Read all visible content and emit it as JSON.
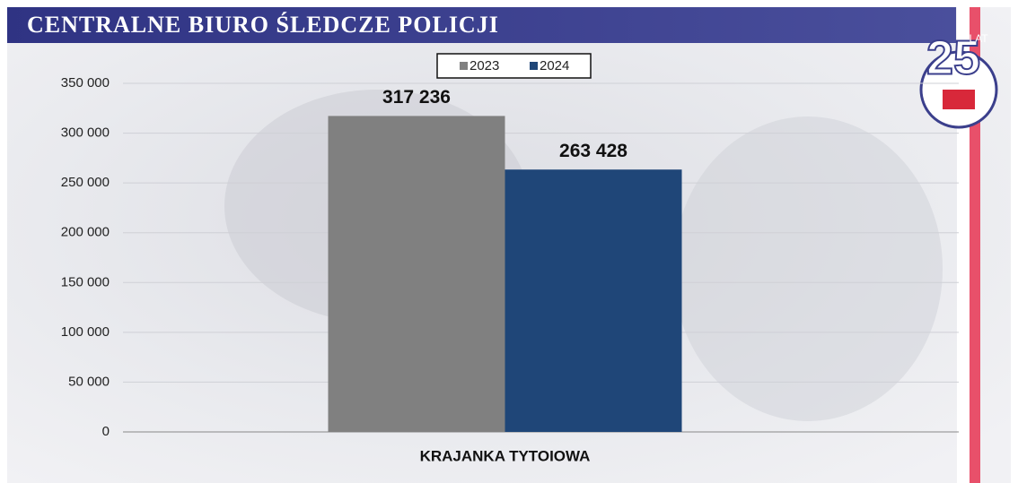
{
  "header": {
    "title": "CENTRALNE BIURO ŚLEDCZE POLICJI"
  },
  "logo": {
    "number": "25",
    "text": "LAT"
  },
  "chart_data": {
    "type": "bar",
    "categories": [
      "KRAJANKA TYTOIOWA"
    ],
    "series": [
      {
        "name": "2023",
        "color": "#808080",
        "values": [
          317236
        ],
        "value_labels": [
          "317 236"
        ]
      },
      {
        "name": "2024",
        "color": "#1f4678",
        "values": [
          263428
        ],
        "value_labels": [
          "263 428"
        ]
      }
    ],
    "ylim": [
      0,
      350000
    ],
    "yticks": [
      0,
      {
        "value": 50000,
        "label": "50 000"
      },
      {
        "value": 100000,
        "label": "100 000"
      },
      {
        "value": 150000,
        "label": "150 000"
      },
      {
        "value": 200000,
        "label": "200 000"
      },
      {
        "value": 250000,
        "label": "250 000"
      },
      {
        "value": 300000,
        "label": "300 000"
      },
      {
        "value": 350000,
        "label": "350 000"
      }
    ],
    "grid": true,
    "legend": "top"
  }
}
